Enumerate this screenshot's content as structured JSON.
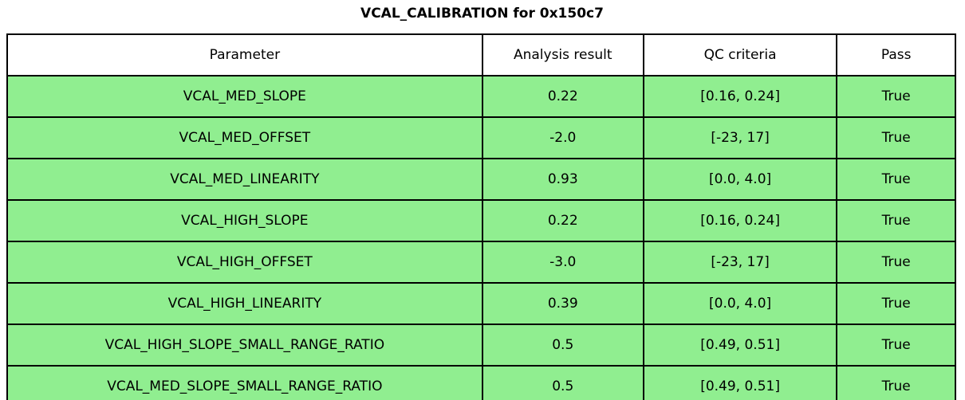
{
  "title": "VCAL_CALIBRATION for 0x150c7",
  "colors": {
    "row_bg": "#90ee90",
    "header_bg": "#ffffff",
    "border": "#000000"
  },
  "chart_data": {
    "type": "table",
    "title": "VCAL_CALIBRATION for 0x150c7",
    "columns": [
      "Parameter",
      "Analysis result",
      "QC criteria",
      "Pass"
    ],
    "rows": [
      [
        "VCAL_MED_SLOPE",
        "0.22",
        "[0.16, 0.24]",
        "True"
      ],
      [
        "VCAL_MED_OFFSET",
        "-2.0",
        "[-23, 17]",
        "True"
      ],
      [
        "VCAL_MED_LINEARITY",
        "0.93",
        "[0.0, 4.0]",
        "True"
      ],
      [
        "VCAL_HIGH_SLOPE",
        "0.22",
        "[0.16, 0.24]",
        "True"
      ],
      [
        "VCAL_HIGH_OFFSET",
        "-3.0",
        "[-23, 17]",
        "True"
      ],
      [
        "VCAL_HIGH_LINEARITY",
        "0.39",
        "[0.0, 4.0]",
        "True"
      ],
      [
        "VCAL_HIGH_SLOPE_SMALL_RANGE_RATIO",
        "0.5",
        "[0.49, 0.51]",
        "True"
      ],
      [
        "VCAL_MED_SLOPE_SMALL_RANGE_RATIO",
        "0.5",
        "[0.49, 0.51]",
        "True"
      ]
    ],
    "header_fill_color": "#ffffff",
    "row_fill_color": "#90ee90",
    "pass_all": true
  }
}
